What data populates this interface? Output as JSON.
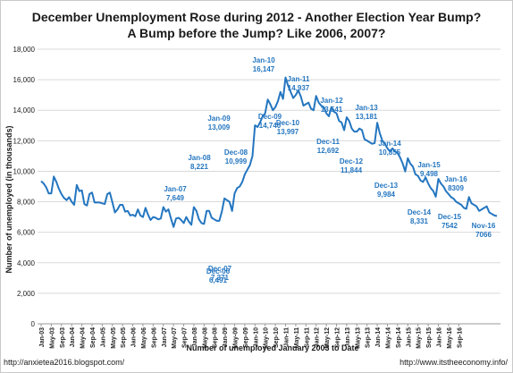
{
  "chart_data": {
    "type": "line",
    "title": "December Unemployment Rose during 2012 - Another Election Year Bump?",
    "subtitle": "A Bump before the Jump? Like 2006, 2007?",
    "xlabel": "Number of unemployed January 2003 to Date",
    "ylabel": "Number of unemployed (in thousands)",
    "ylim": [
      0,
      18000
    ],
    "yticks": [
      "0",
      "2,000",
      "4,000",
      "6,000",
      "8,000",
      "10,000",
      "12,000",
      "14,000",
      "16,000",
      "18,000"
    ],
    "grid": true,
    "legend": "none",
    "line_color": "#2476c0",
    "x_start": "Jan-03",
    "x_tick_labels": [
      "Jan-03",
      "May-03",
      "Sep-03",
      "Jan-04",
      "May-04",
      "Sep-04",
      "Jan-05",
      "May-05",
      "Sep-05",
      "Jan-06",
      "May-06",
      "Sep-06",
      "Jan-07",
      "May-07",
      "Sep-07",
      "Jan-08",
      "May-08",
      "Sep-08",
      "Jan-09",
      "May-09",
      "Sep-09",
      "Jan-10",
      "May-10",
      "Sep-10",
      "Jan-11",
      "May-11",
      "Sep-11",
      "Jan-12",
      "May-12",
      "Sep-12",
      "Jan-13",
      "May-13",
      "Sep-13",
      "Jan-14",
      "May-14",
      "Sep-14",
      "Jan-15",
      "May-15",
      "Sep-15",
      "Jan-16",
      "May-16",
      "Sep-16"
    ],
    "series": [
      {
        "values": [
          9350,
          9200,
          8950,
          8550,
          8550,
          9650,
          9300,
          8850,
          8500,
          8250,
          8100,
          8300,
          8000,
          7800,
          9100,
          8700,
          8750,
          7850,
          7750,
          8500,
          8600,
          7950,
          7950,
          7950,
          7900,
          7850,
          8500,
          8600,
          7950,
          7300,
          7500,
          7800,
          7800,
          7350,
          7400,
          7100,
          7150,
          7050,
          7500,
          7100,
          7000,
          7600,
          7150,
          6800,
          7000,
          6950,
          6850,
          6900,
          7650,
          7350,
          7500,
          6900,
          6350,
          6900,
          6950,
          6800,
          6600,
          7000,
          6700,
          6491,
          7649,
          7400,
          6850,
          6600,
          6550,
          7400,
          7400,
          6950,
          6850,
          6750,
          6750,
          7371,
          8221,
          8100,
          8000,
          7400,
          8550,
          8900,
          9000,
          9300,
          9800,
          10100,
          10400,
          10999,
          13009,
          12900,
          13200,
          13600,
          13800,
          14700,
          14400,
          14000,
          14200,
          14600,
          15200,
          14740,
          16147,
          15600,
          15200,
          14800,
          15000,
          15300,
          14900,
          14300,
          14400,
          14500,
          14100,
          13997,
          14937,
          14500,
          14300,
          14200,
          13800,
          13600,
          14200,
          13900,
          13800,
          13300,
          13200,
          12692,
          13541,
          13300,
          12800,
          12600,
          12600,
          12800,
          12700,
          12100,
          12000,
          11900,
          11800,
          11844,
          13181,
          12500,
          12000,
          11800,
          11500,
          11300,
          11500,
          11300,
          11200,
          10900,
          10500,
          9984,
          10855,
          10500,
          10300,
          9800,
          9700,
          9400,
          9300,
          9600,
          9200,
          8900,
          8700,
          8331,
          9498,
          9200,
          9000,
          8700,
          8500,
          8300,
          8200,
          8000,
          7900,
          7800,
          7600,
          7542,
          8309,
          7900,
          7800,
          7700,
          7400,
          7500,
          7600,
          7700,
          7300,
          7200,
          7100,
          7066
        ]
      }
    ],
    "annotations": [
      {
        "label": "Dec-06",
        "value": "6,491"
      },
      {
        "label": "Jan-07",
        "value": "7,649"
      },
      {
        "label": "Dec-07",
        "value": "7,371"
      },
      {
        "label": "Jan-08",
        "value": "8,221"
      },
      {
        "label": "Dec-08",
        "value": "10,999"
      },
      {
        "label": "Jan-09",
        "value": "13,009"
      },
      {
        "label": "Dec-09",
        "value": "14,740"
      },
      {
        "label": "Jan-10",
        "value": "16,147"
      },
      {
        "label": "Dec-10",
        "value": "13,997"
      },
      {
        "label": "Jan-11",
        "value": "14,937"
      },
      {
        "label": "Dec-11",
        "value": "12,692"
      },
      {
        "label": "Jan-12",
        "value": "13,541"
      },
      {
        "label": "Dec-12",
        "value": "11,844"
      },
      {
        "label": "Jan-13",
        "value": "13,181"
      },
      {
        "label": "Dec-13",
        "value": "9,984"
      },
      {
        "label": "Jan-14",
        "value": "10,855"
      },
      {
        "label": "Dec-14",
        "value": "8,331"
      },
      {
        "label": "Jan-15",
        "value": "9,498"
      },
      {
        "label": "Dec-15",
        "value": "7542"
      },
      {
        "label": "Jan-16",
        "value": "8309"
      },
      {
        "label": "Nov-16",
        "value": "7066"
      }
    ]
  },
  "footer": {
    "left": "http://anxietea2016.blogspot.com/",
    "right": "http://www.itstheeconomy.info/"
  }
}
